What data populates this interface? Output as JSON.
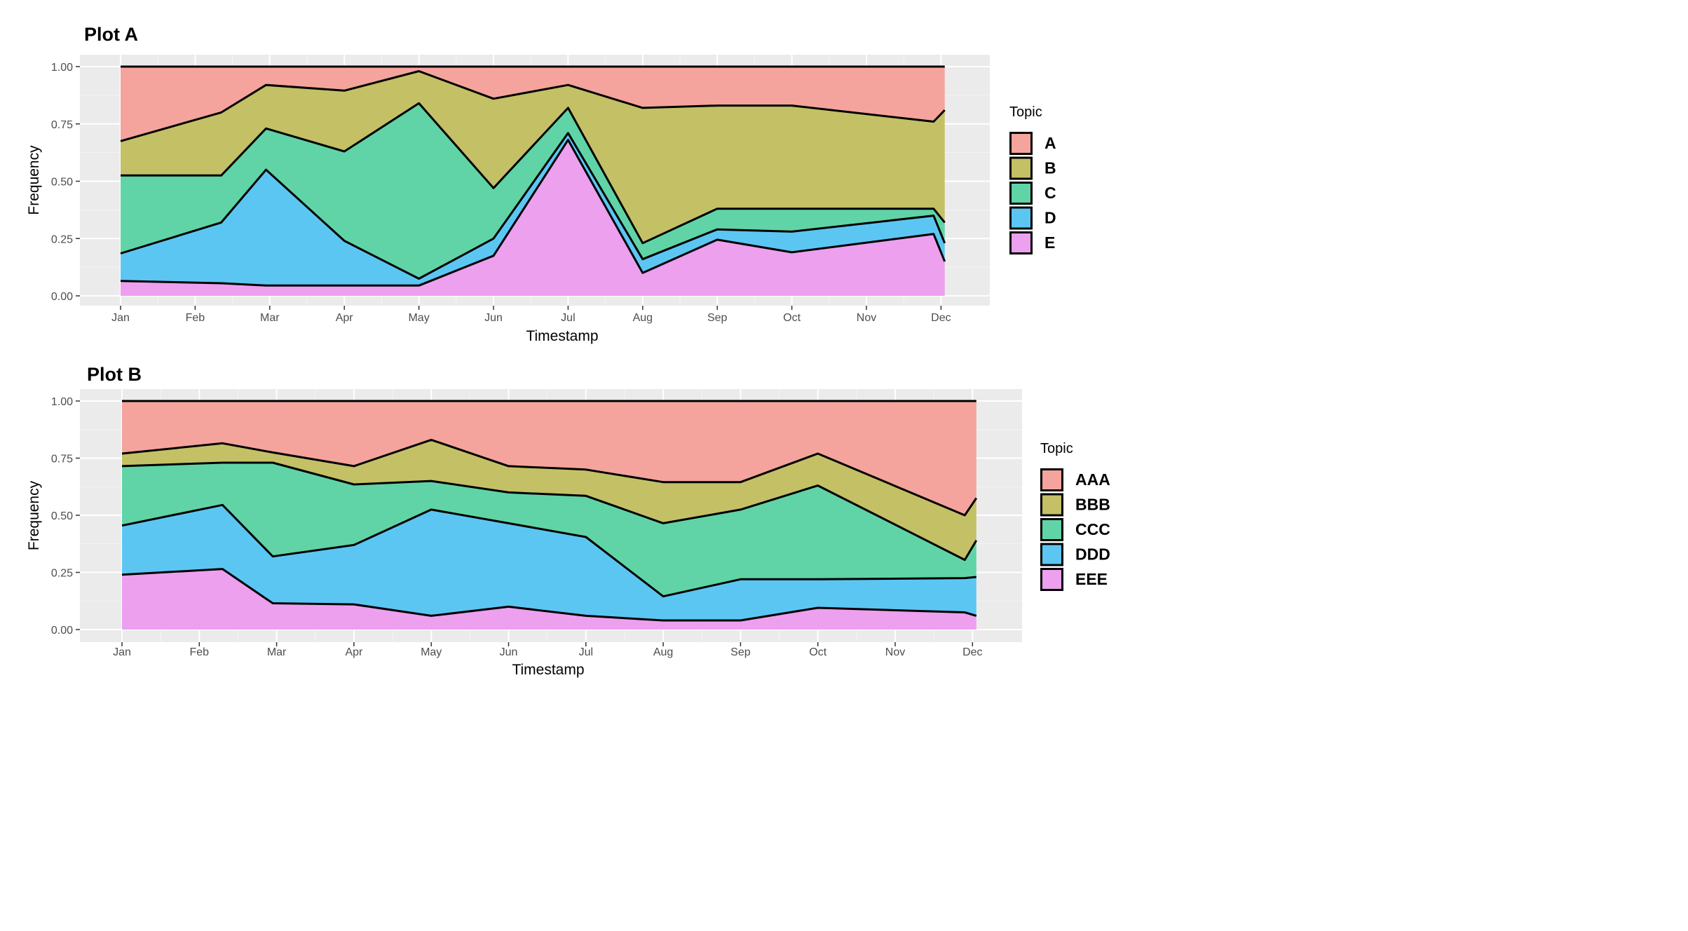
{
  "colors": {
    "panel_bg": "#ebebeb",
    "grid_major": "#ffffff",
    "grid_minor": "#f4f4f4",
    "tick": "#333333",
    "outline": "#000000",
    "fills": [
      "#f4a49c",
      "#c4c066",
      "#60d4a6",
      "#5cc6f3",
      "#eca0ee"
    ]
  },
  "chart_data": [
    {
      "type": "area",
      "stacked": true,
      "title": "Plot A",
      "xlabel": "Timestamp",
      "ylabel": "Frequency",
      "ylim": [
        0,
        1
      ],
      "yticks": [
        "0.00",
        "0.25",
        "0.50",
        "0.75",
        "1.00"
      ],
      "categories": [
        "Jan",
        "Feb",
        "Mar",
        "Apr",
        "May",
        "Jun",
        "Jul",
        "Aug",
        "Sep",
        "Oct",
        "Nov",
        "Dec"
      ],
      "legend_title": "Topic",
      "legend_position": "right",
      "series": [
        {
          "name": "A"
        },
        {
          "name": "B"
        },
        {
          "name": "C"
        },
        {
          "name": "D"
        },
        {
          "name": "E"
        }
      ],
      "x": [
        0.0,
        1.35,
        1.95,
        3.0,
        4.0,
        5.0,
        6.0,
        7.0,
        8.0,
        9.0,
        10.9,
        11.05
      ],
      "stack_boundaries": [
        [
          1.0,
          1.0,
          1.0,
          1.0,
          1.0,
          1.0,
          1.0,
          1.0,
          1.0,
          1.0,
          1.0,
          1.0
        ],
        [
          0.675,
          0.8,
          0.92,
          0.895,
          0.98,
          0.86,
          0.92,
          0.82,
          0.83,
          0.83,
          0.76,
          0.81
        ],
        [
          0.525,
          0.525,
          0.73,
          0.63,
          0.84,
          0.47,
          0.82,
          0.23,
          0.38,
          0.38,
          0.38,
          0.32
        ],
        [
          0.185,
          0.32,
          0.55,
          0.24,
          0.075,
          0.25,
          0.71,
          0.16,
          0.29,
          0.28,
          0.35,
          0.23
        ],
        [
          0.065,
          0.055,
          0.045,
          0.045,
          0.045,
          0.175,
          0.68,
          0.1,
          0.245,
          0.19,
          0.27,
          0.15
        ]
      ]
    },
    {
      "type": "area",
      "stacked": true,
      "title": "Plot B",
      "xlabel": "Timestamp",
      "ylabel": "Frequency",
      "ylim": [
        0,
        1
      ],
      "yticks": [
        "0.00",
        "0.25",
        "0.50",
        "0.75",
        "1.00"
      ],
      "categories": [
        "Jan",
        "Feb",
        "Mar",
        "Apr",
        "May",
        "Jun",
        "Jul",
        "Aug",
        "Sep",
        "Oct",
        "Nov",
        "Dec"
      ],
      "legend_title": "Topic",
      "legend_position": "right",
      "series": [
        {
          "name": "AAA"
        },
        {
          "name": "BBB"
        },
        {
          "name": "CCC"
        },
        {
          "name": "DDD"
        },
        {
          "name": "EEE"
        }
      ],
      "x": [
        0.0,
        1.3,
        1.95,
        3.0,
        4.0,
        5.0,
        6.0,
        7.0,
        8.0,
        9.0,
        10.9,
        11.05
      ],
      "stack_boundaries": [
        [
          1.0,
          1.0,
          1.0,
          1.0,
          1.0,
          1.0,
          1.0,
          1.0,
          1.0,
          1.0,
          1.0,
          1.0
        ],
        [
          0.77,
          0.815,
          0.775,
          0.715,
          0.83,
          0.715,
          0.7,
          0.645,
          0.645,
          0.77,
          0.5,
          0.575
        ],
        [
          0.715,
          0.73,
          0.73,
          0.635,
          0.65,
          0.6,
          0.585,
          0.465,
          0.525,
          0.63,
          0.305,
          0.39
        ],
        [
          0.455,
          0.545,
          0.32,
          0.37,
          0.525,
          0.465,
          0.405,
          0.145,
          0.22,
          0.22,
          0.225,
          0.23
        ],
        [
          0.24,
          0.265,
          0.115,
          0.11,
          0.06,
          0.1,
          0.06,
          0.04,
          0.04,
          0.095,
          0.075,
          0.06
        ]
      ]
    }
  ]
}
